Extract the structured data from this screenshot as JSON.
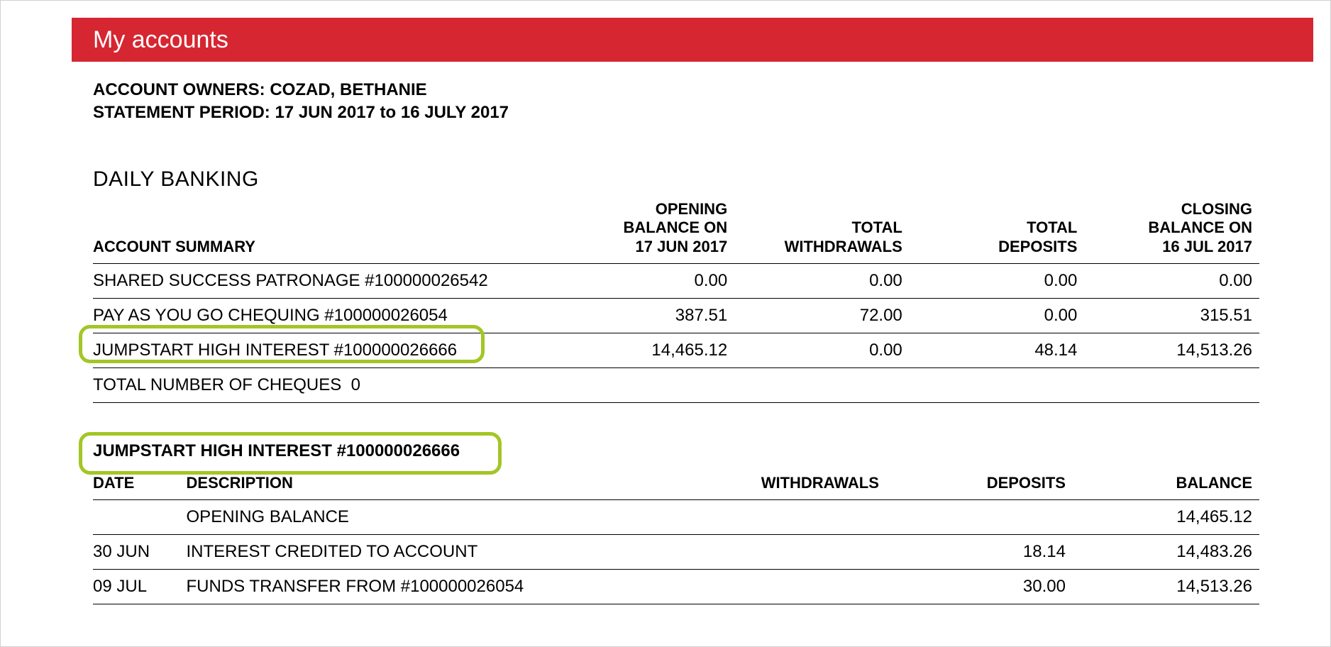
{
  "colors": {
    "banner_bg": "#d62631",
    "banner_text": "#ffffff",
    "highlight_border": "#a3c626",
    "text": "#000000",
    "page_border": "#d0d0d0"
  },
  "banner": {
    "title": "My accounts"
  },
  "meta": {
    "owners_label": "ACCOUNT OWNERS:",
    "owners_value": "COZAD, BETHANIE",
    "period_label": "STATEMENT PERIOD:",
    "period_value": "17 JUN 2017 to 16 JULY 2017"
  },
  "summary": {
    "section_title": "DAILY BANKING",
    "subheader": "ACCOUNT SUMMARY",
    "columns": {
      "opening": "OPENING BALANCE ON 17 JUN 2017",
      "withdrawals": "TOTAL WITHDRAWALS",
      "deposits": "TOTAL DEPOSITS",
      "closing": "CLOSING BALANCE ON 16 JUL 2017"
    },
    "col_widths": [
      "40%",
      "15%",
      "15%",
      "15%",
      "15%"
    ],
    "rows": [
      {
        "name": "SHARED SUCCESS PATRONAGE #100000026542",
        "opening": "0.00",
        "withdrawals": "0.00",
        "deposits": "0.00",
        "closing": "0.00"
      },
      {
        "name": "PAY AS YOU GO CHEQUING #100000026054",
        "opening": "387.51",
        "withdrawals": "72.00",
        "deposits": "0.00",
        "closing": "315.51"
      },
      {
        "name": "JUMPSTART HIGH INTEREST #100000026666",
        "opening": "14,465.12",
        "withdrawals": "0.00",
        "deposits": "48.14",
        "closing": "14,513.26"
      }
    ],
    "cheques_label": "TOTAL NUMBER OF CHEQUES",
    "cheques_value": "0"
  },
  "detail": {
    "title": "JUMPSTART HIGH INTEREST #100000026666",
    "columns": {
      "date": "DATE",
      "description": "DESCRIPTION",
      "withdrawals": "WITHDRAWALS",
      "deposits": "DEPOSITS",
      "balance": "BALANCE"
    },
    "col_widths": [
      "8%",
      "44%",
      "16%",
      "16%",
      "16%"
    ],
    "rows": [
      {
        "date": "",
        "description": "OPENING BALANCE",
        "withdrawals": "",
        "deposits": "",
        "balance": "14,465.12"
      },
      {
        "date": "30 JUN",
        "description": "INTEREST CREDITED TO ACCOUNT",
        "withdrawals": "",
        "deposits": "18.14",
        "balance": "14,483.26"
      },
      {
        "date": "09 JUL",
        "description": "FUNDS TRANSFER FROM #100000026054",
        "withdrawals": "",
        "deposits": "30.00",
        "balance": "14,513.26"
      }
    ]
  },
  "highlights": [
    {
      "target": "summary-row-3"
    },
    {
      "target": "detail-title"
    }
  ]
}
